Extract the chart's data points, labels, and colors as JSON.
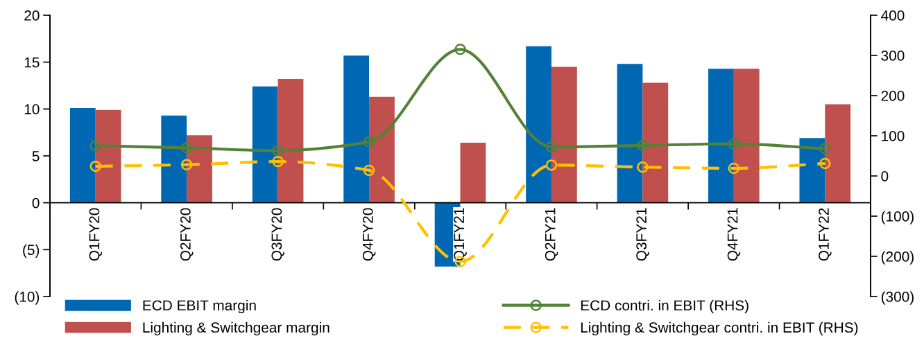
{
  "chart_data": {
    "type": "bar",
    "categories": [
      "Q1FY20",
      "Q2FY20",
      "Q3FY20",
      "Q4FY20",
      "Q1FY21",
      "Q2FY21",
      "Q3FY21",
      "Q4FY21",
      "Q1FY22"
    ],
    "series": [
      {
        "name": "ECD EBIT margin",
        "color": "#0068b2",
        "values": [
          10.1,
          9.3,
          12.4,
          15.7,
          -6.8,
          16.7,
          14.8,
          14.3,
          6.9
        ]
      },
      {
        "name": "Lighting & Switchgear margin",
        "color": "#c0504d",
        "values": [
          9.9,
          7.2,
          13.2,
          11.3,
          6.4,
          14.5,
          12.8,
          14.3,
          10.5
        ]
      },
      {
        "name": "ECD contri. in EBIT (RHS)",
        "type": "line",
        "axis": "y2",
        "color": "#548235",
        "marker": "circle",
        "line_style": "solid",
        "values": [
          75,
          70,
          63,
          85,
          315,
          72,
          76,
          80,
          68
        ]
      },
      {
        "name": "Lighting & Switchgear contri. in EBIT (RHS)",
        "type": "line",
        "axis": "y2",
        "color": "#ffc000",
        "marker": "circle",
        "line_style": "dashed",
        "values": [
          24,
          28,
          36,
          14,
          -213,
          27,
          22,
          19,
          31
        ]
      }
    ],
    "ylim": [
      -10,
      20
    ],
    "yticks": [
      {
        "value": -10,
        "label": "(10)"
      },
      {
        "value": -5,
        "label": "(5)"
      },
      0,
      5,
      10,
      15,
      20
    ],
    "y2lim": [
      -300,
      400
    ],
    "y2ticks": [
      {
        "value": -300,
        "label": "(300)"
      },
      {
        "value": -200,
        "label": "(200)"
      },
      {
        "value": -100,
        "label": "(100)"
      },
      0,
      100,
      200,
      300,
      400
    ],
    "grid": false,
    "legend": "bottom"
  }
}
